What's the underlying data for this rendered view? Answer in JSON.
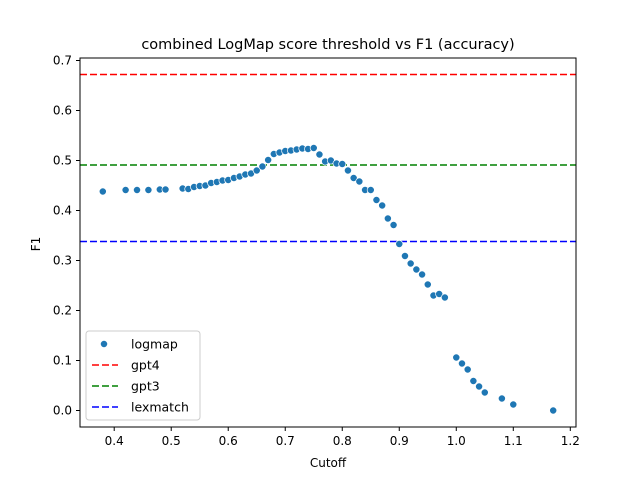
{
  "chart_data": {
    "type": "scatter",
    "title": "combined LogMap score threshold vs F1 (accuracy)",
    "xlabel": "Cutoff",
    "ylabel": "F1",
    "xlim": [
      0.34,
      1.21
    ],
    "ylim": [
      -0.033,
      0.705
    ],
    "xticks": [
      "0.4",
      "0.5",
      "0.6",
      "0.7",
      "0.8",
      "0.9",
      "1.0",
      "1.1",
      "1.2"
    ],
    "yticks": [
      "0.0",
      "0.1",
      "0.2",
      "0.3",
      "0.4",
      "0.5",
      "0.6",
      "0.7"
    ],
    "grid": false,
    "legend_position": "lower-left",
    "series": [
      {
        "name": "logmap",
        "kind": "scatter",
        "color": "#1f77b4",
        "points": [
          [
            0.38,
            0.438
          ],
          [
            0.42,
            0.441
          ],
          [
            0.44,
            0.441
          ],
          [
            0.46,
            0.441
          ],
          [
            0.48,
            0.442
          ],
          [
            0.49,
            0.442
          ],
          [
            0.52,
            0.444
          ],
          [
            0.53,
            0.443
          ],
          [
            0.54,
            0.447
          ],
          [
            0.55,
            0.449
          ],
          [
            0.56,
            0.45
          ],
          [
            0.57,
            0.455
          ],
          [
            0.58,
            0.457
          ],
          [
            0.59,
            0.46
          ],
          [
            0.6,
            0.461
          ],
          [
            0.61,
            0.465
          ],
          [
            0.62,
            0.468
          ],
          [
            0.63,
            0.472
          ],
          [
            0.64,
            0.474
          ],
          [
            0.65,
            0.48
          ],
          [
            0.66,
            0.488
          ],
          [
            0.67,
            0.501
          ],
          [
            0.68,
            0.513
          ],
          [
            0.69,
            0.516
          ],
          [
            0.7,
            0.519
          ],
          [
            0.71,
            0.52
          ],
          [
            0.72,
            0.522
          ],
          [
            0.73,
            0.524
          ],
          [
            0.74,
            0.523
          ],
          [
            0.75,
            0.525
          ],
          [
            0.76,
            0.512
          ],
          [
            0.77,
            0.498
          ],
          [
            0.78,
            0.5
          ],
          [
            0.79,
            0.494
          ],
          [
            0.8,
            0.493
          ],
          [
            0.81,
            0.48
          ],
          [
            0.82,
            0.465
          ],
          [
            0.83,
            0.458
          ],
          [
            0.84,
            0.441
          ],
          [
            0.85,
            0.441
          ],
          [
            0.86,
            0.421
          ],
          [
            0.87,
            0.41
          ],
          [
            0.88,
            0.384
          ],
          [
            0.89,
            0.371
          ],
          [
            0.9,
            0.333
          ],
          [
            0.91,
            0.309
          ],
          [
            0.92,
            0.294
          ],
          [
            0.93,
            0.282
          ],
          [
            0.94,
            0.272
          ],
          [
            0.95,
            0.252
          ],
          [
            0.96,
            0.23
          ],
          [
            0.97,
            0.233
          ],
          [
            0.98,
            0.226
          ],
          [
            1.0,
            0.106
          ],
          [
            1.01,
            0.094
          ],
          [
            1.02,
            0.082
          ],
          [
            1.03,
            0.059
          ],
          [
            1.04,
            0.048
          ],
          [
            1.05,
            0.036
          ],
          [
            1.08,
            0.024
          ],
          [
            1.1,
            0.012
          ],
          [
            1.17,
            0.0
          ]
        ]
      },
      {
        "name": "gpt4",
        "kind": "hline",
        "y": 0.672,
        "color": "#ff0000",
        "dash": "dashed"
      },
      {
        "name": "gpt3",
        "kind": "hline",
        "y": 0.491,
        "color": "#008000",
        "dash": "dashed"
      },
      {
        "name": "lexmatch",
        "kind": "hline",
        "y": 0.338,
        "color": "#0000ff",
        "dash": "dashed"
      }
    ]
  }
}
